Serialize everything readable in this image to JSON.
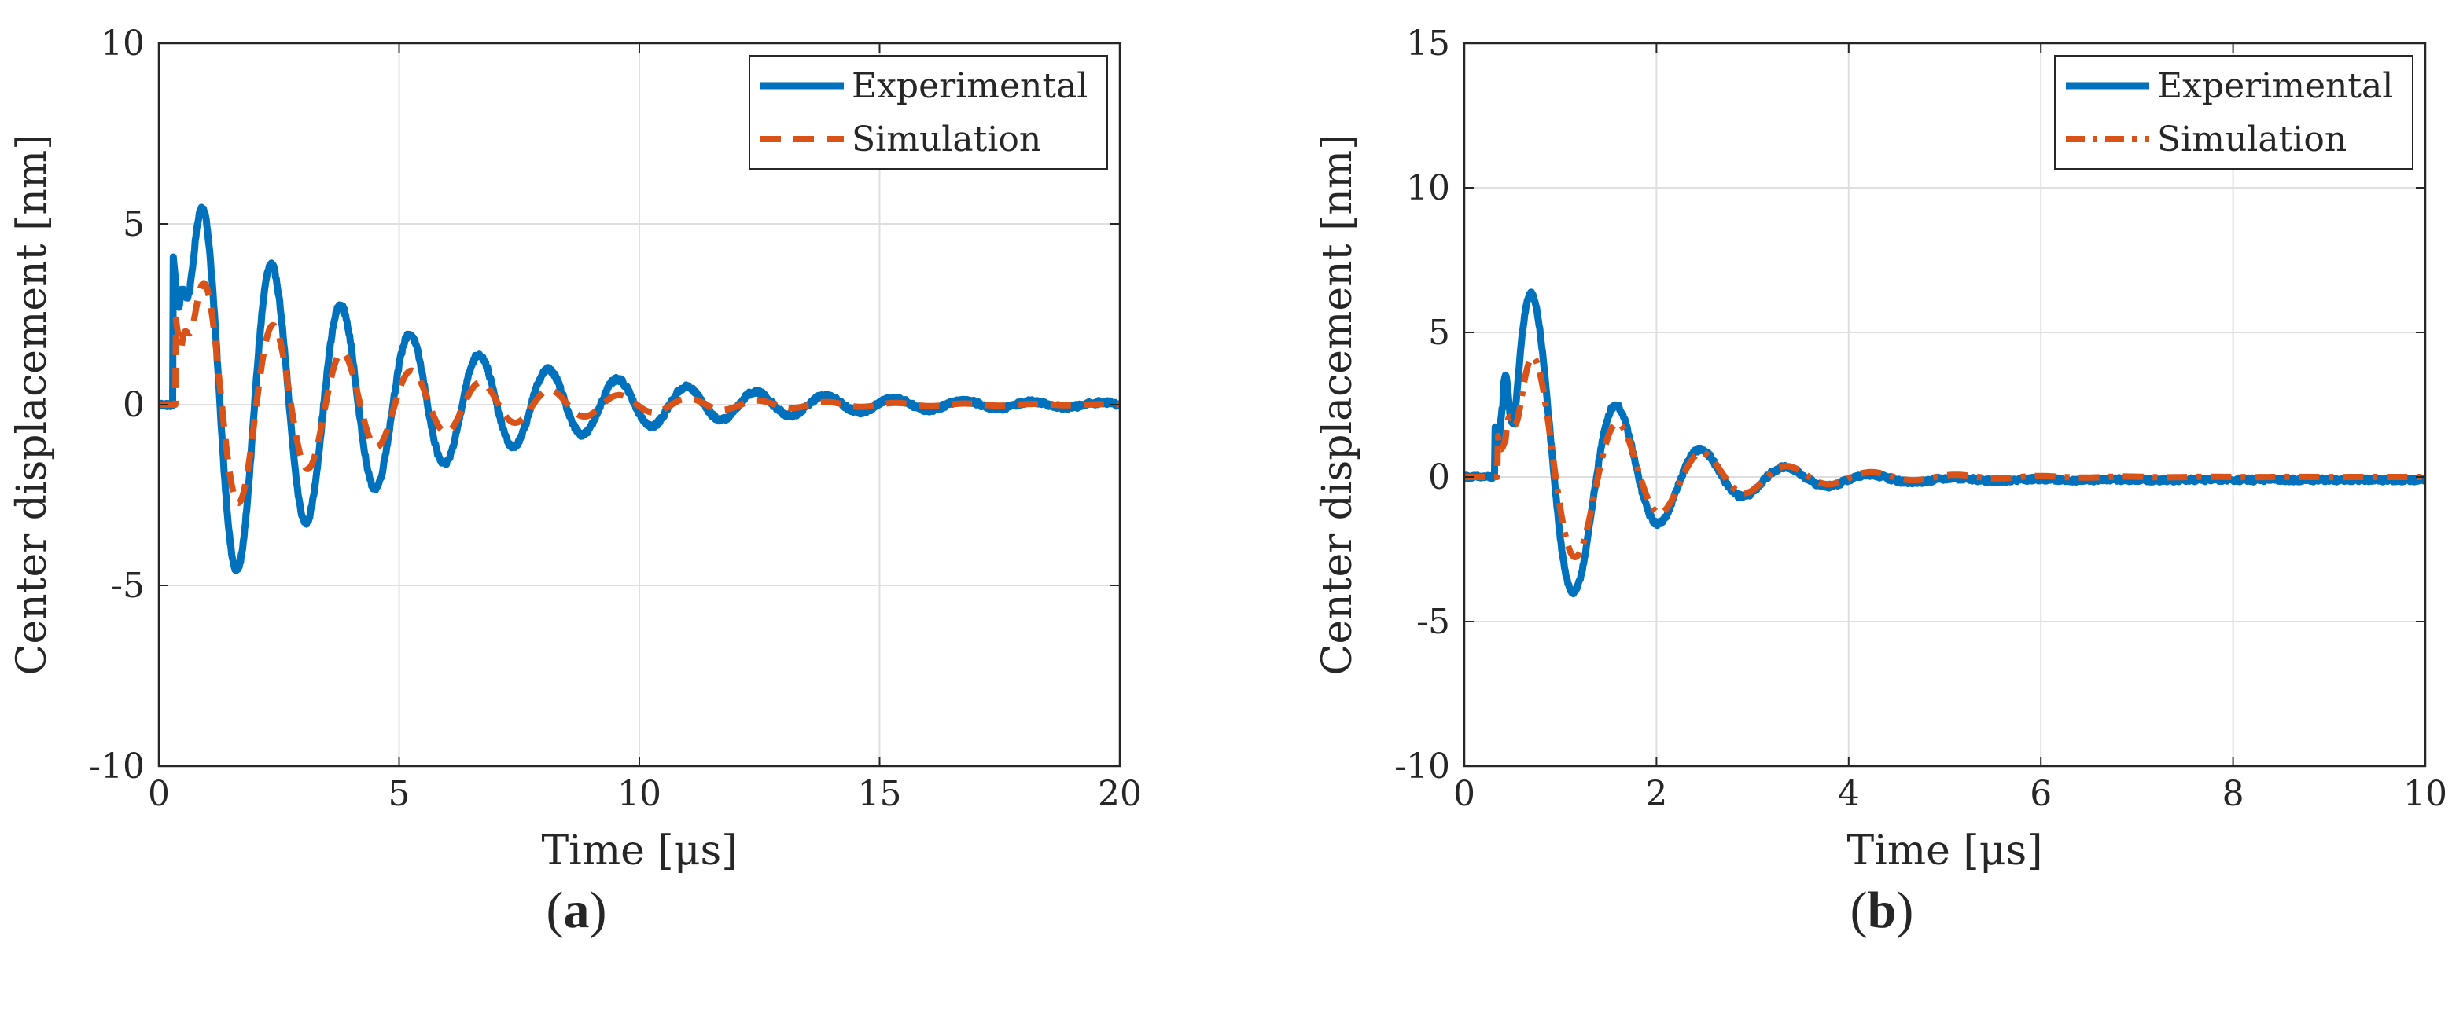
{
  "chart_data": [
    {
      "type": "line",
      "panel_label": "(a)",
      "panel_letter": "a",
      "xlabel": "Time [μs]",
      "ylabel": "Center displacement [nm]",
      "xlim": [
        0,
        20
      ],
      "ylim": [
        -10,
        10
      ],
      "xticks": [
        0,
        5,
        10,
        15,
        20
      ],
      "yticks": [
        -10,
        -5,
        0,
        5,
        10
      ],
      "grid": true,
      "legend_position": "top-right",
      "series": [
        {
          "name": "Experimental",
          "color": "#0072BD",
          "style": "solid",
          "params": {
            "t0": 0.3,
            "rise": 0.12,
            "A1": 9.3,
            "w1": 0.16,
            "A": 6.3,
            "tau": 4.2,
            "period": 1.44,
            "phase": -1.1,
            "drift": 0.0,
            "noise": 0.12
          }
        },
        {
          "name": "Simulation",
          "color": "#D95319",
          "style": "dashed",
          "params": {
            "t0": 0.35,
            "rise": 0.12,
            "A1": 5.5,
            "w1": 0.16,
            "A": 4.0,
            "tau": 3.4,
            "period": 1.44,
            "phase": -1.05,
            "drift": 0.0,
            "noise": 0.0
          }
        }
      ]
    },
    {
      "type": "line",
      "panel_label": "(b)",
      "panel_letter": "b",
      "xlabel": "Time [μs]",
      "ylabel": "Center displacement [nm]",
      "xlim": [
        0,
        10
      ],
      "ylim": [
        -10,
        15
      ],
      "xticks": [
        0,
        2,
        4,
        6,
        8,
        10
      ],
      "yticks": [
        -10,
        -5,
        0,
        5,
        10,
        15
      ],
      "grid": true,
      "legend_position": "top-right",
      "series": [
        {
          "name": "Experimental",
          "color": "#0072BD",
          "style": "solid",
          "params": {
            "t0": 0.32,
            "rise": 0.08,
            "A1": 11.4,
            "w1": 0.07,
            "A": 9.5,
            "tau": 0.95,
            "period": 0.88,
            "phase": -1.25,
            "drift": -0.1,
            "noise": 0.14
          }
        },
        {
          "name": "Simulation",
          "color": "#D95319",
          "style": "dashdot",
          "params": {
            "t0": 0.35,
            "rise": 0.08,
            "A1": 6.0,
            "w1": 0.08,
            "A": 5.8,
            "tau": 1.1,
            "period": 0.88,
            "phase": -1.15,
            "drift": 0.0,
            "noise": 0.0
          }
        }
      ]
    }
  ]
}
